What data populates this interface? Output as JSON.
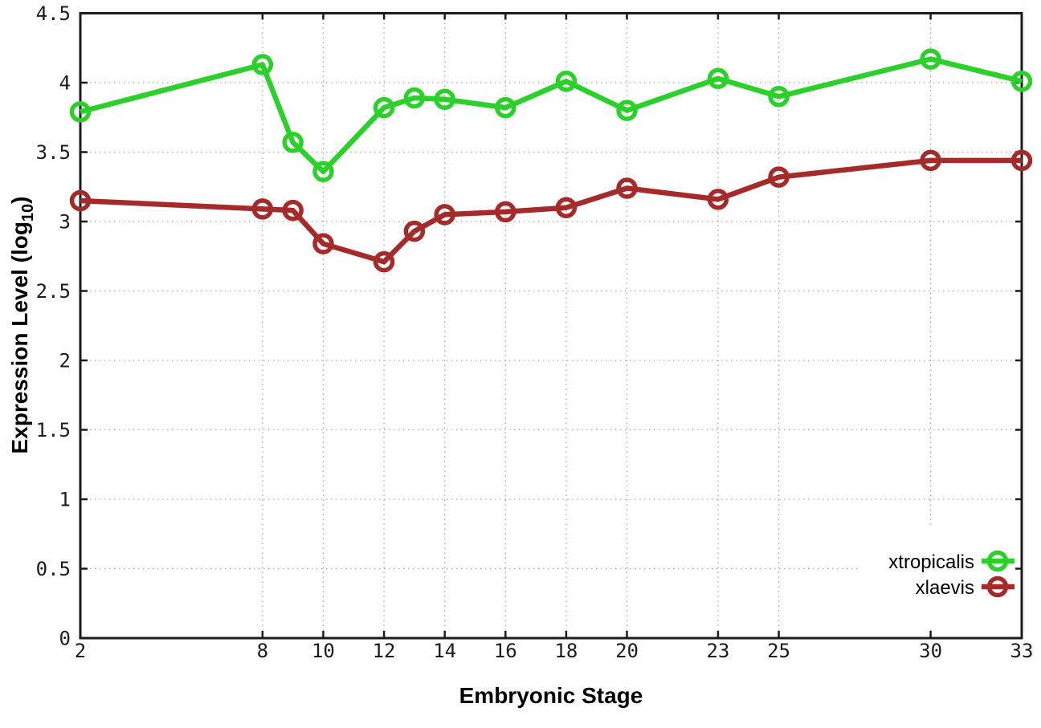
{
  "chart_data": {
    "type": "line",
    "title": "",
    "xlabel": "Embryonic Stage",
    "ylabel": "Expression Level (log10)",
    "xlim": [
      2,
      33
    ],
    "ylim": [
      0,
      4.5
    ],
    "grid": true,
    "grid_style": "dotted",
    "legend_position": "inside-right-lower",
    "x": [
      2,
      8,
      9,
      10,
      12,
      13,
      14,
      16,
      18,
      20,
      23,
      25,
      30,
      33
    ],
    "xticks": [
      2,
      8,
      10,
      12,
      14,
      16,
      18,
      20,
      23,
      25,
      30,
      33
    ],
    "yticks": [
      0,
      0.5,
      1,
      1.5,
      2,
      2.5,
      3,
      3.5,
      4,
      4.5
    ],
    "series": [
      {
        "name": "xtropicalis",
        "color": "#2bd02b",
        "marker": "open-circle",
        "values": [
          3.79,
          4.13,
          3.57,
          3.36,
          3.82,
          3.89,
          3.88,
          3.82,
          4.01,
          3.8,
          4.03,
          3.9,
          4.17,
          4.01
        ]
      },
      {
        "name": "xlaevis",
        "color": "#a52a2a",
        "marker": "open-circle",
        "values": [
          3.15,
          3.09,
          3.08,
          2.84,
          2.71,
          2.93,
          3.05,
          3.07,
          3.1,
          3.24,
          3.16,
          3.32,
          3.44,
          3.44
        ]
      }
    ]
  },
  "labels": {
    "xlabel": "Embryonic Stage",
    "ylabel_main": "Expression Level (log",
    "ylabel_sub": "10",
    "ylabel_close": ")"
  },
  "colors": {
    "axis": "#1c1c1c",
    "grid": "#a8a8a8",
    "background": "#ffffff",
    "tick_text": "#1c1c1c"
  }
}
